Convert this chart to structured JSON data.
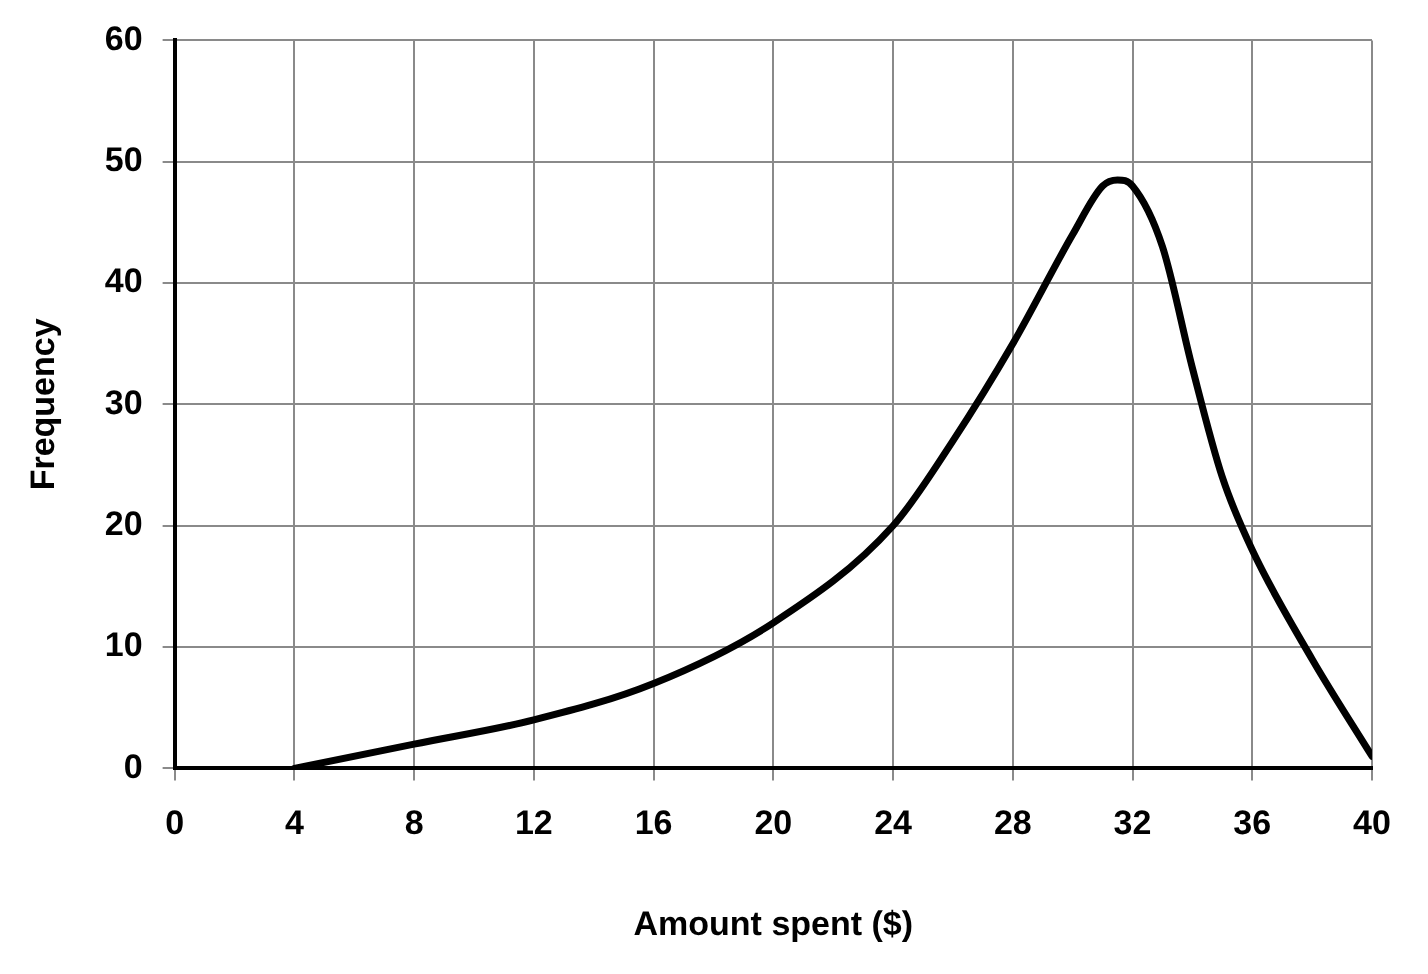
{
  "chart_data": {
    "type": "line",
    "xlabel": "Amount spent ($)",
    "ylabel": "Frequency",
    "x": [
      4,
      8,
      12,
      16,
      20,
      24,
      26,
      28,
      30,
      31,
      31.5,
      32,
      33,
      34,
      35,
      36,
      38,
      40
    ],
    "series": [
      {
        "color": "#000000",
        "values": [
          0,
          2,
          4,
          7,
          12,
          20,
          27,
          35,
          44,
          48,
          48.5,
          48,
          43,
          33,
          24,
          18,
          9,
          1
        ]
      }
    ],
    "xlim": [
      0,
      40
    ],
    "xticks": [
      0,
      4,
      8,
      12,
      16,
      20,
      24,
      28,
      32,
      36,
      40
    ],
    "ylim": [
      0,
      60
    ],
    "yticks": [
      0,
      10,
      20,
      30,
      40,
      50,
      60
    ],
    "grid": true,
    "legend": false,
    "marker": "none",
    "line_style": "solid"
  }
}
